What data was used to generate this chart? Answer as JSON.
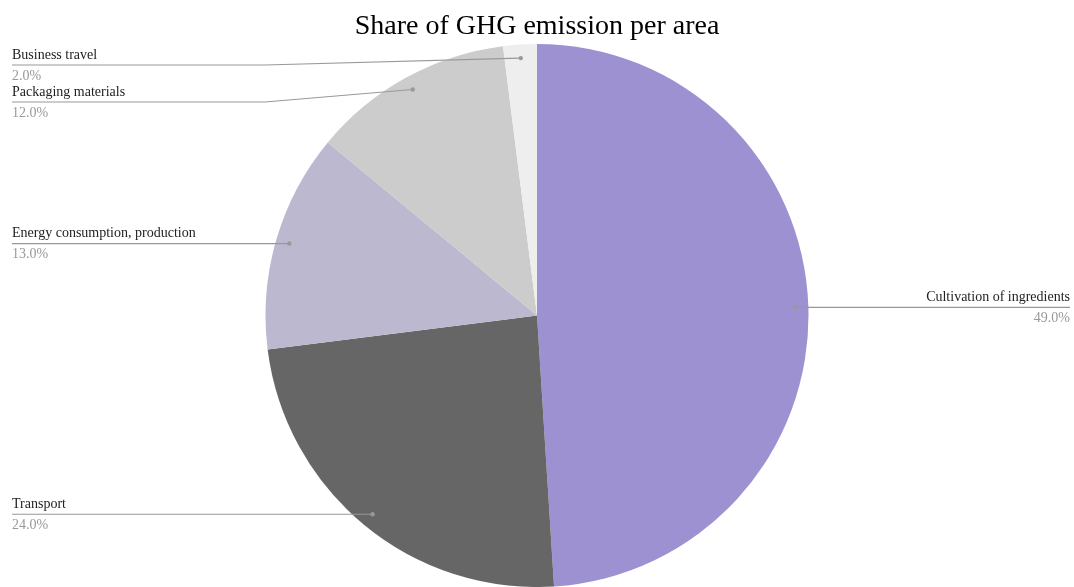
{
  "chart_data": {
    "type": "pie",
    "title": "Share of GHG emission per area",
    "categories": [
      "Cultivation of ingredients",
      "Transport",
      "Energy consumption, production",
      "Packaging materials",
      "Business travel"
    ],
    "values": [
      49,
      24,
      13,
      12,
      2
    ],
    "value_labels": [
      "49.0%",
      "24.0%",
      "13.0%",
      "12.0%",
      "2.0%"
    ],
    "colors": [
      "#9d91d1",
      "#666666",
      "#bcb8cf",
      "#cccccc",
      "#eeeeee"
    ],
    "legend": false
  }
}
